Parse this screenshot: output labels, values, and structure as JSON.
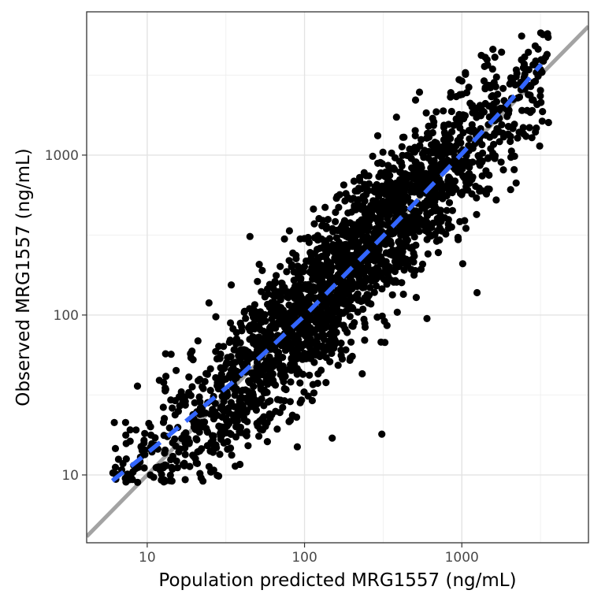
{
  "chart_data": {
    "type": "scatter",
    "title": "",
    "xlabel": "Population predicted MRG1557 (ng/mL)",
    "ylabel": "Observed MRG1557 (ng/mL)",
    "x_scale": "log10",
    "y_scale": "log10",
    "x_ticks": [
      10,
      100,
      1000
    ],
    "y_ticks": [
      10,
      100,
      1000
    ],
    "x_domain_log10": [
      0.615,
      3.805
    ],
    "y_domain_log10": [
      0.576,
      3.896
    ],
    "grid": {
      "show": true,
      "major_color": "#e3e3e3",
      "minor_color": "#f0f0f0",
      "minor_breaks_log10": [
        1.5,
        2.5,
        3.5
      ]
    },
    "panel": {
      "background": "#ffffff",
      "border_color": "#333333"
    },
    "identity_line": {
      "label": "identity y = x",
      "color": "#a3a3a3",
      "width": 5,
      "style": "solid"
    },
    "smooth_line": {
      "label": "smooth trend",
      "color": "#3366ff",
      "width": 5.5,
      "style": "dashed",
      "dash": [
        18,
        12
      ],
      "points": [
        [
          6,
          9.2
        ],
        [
          9,
          12.6
        ],
        [
          14,
          18
        ],
        [
          22,
          26
        ],
        [
          35,
          38
        ],
        [
          60,
          62
        ],
        [
          100,
          99
        ],
        [
          180,
          178
        ],
        [
          320,
          315
        ],
        [
          560,
          560
        ],
        [
          1000,
          1020
        ],
        [
          1800,
          1900
        ],
        [
          3200,
          3700
        ]
      ]
    },
    "points": {
      "color": "#000000",
      "radius": 4.6,
      "n": 2400,
      "seed": 42,
      "x_log10_mean": 2.25,
      "x_log10_sd": 0.63,
      "x_log10_range": [
        0.78,
        3.556
      ],
      "residual_log10_sd": 0.23,
      "y_log10_range": [
        0.95,
        3.78
      ],
      "outliers": [
        [
          1250,
          138
        ],
        [
          310,
          18
        ],
        [
          150,
          17
        ],
        [
          90,
          15
        ],
        [
          45,
          310
        ],
        [
          600,
          95
        ]
      ]
    }
  }
}
